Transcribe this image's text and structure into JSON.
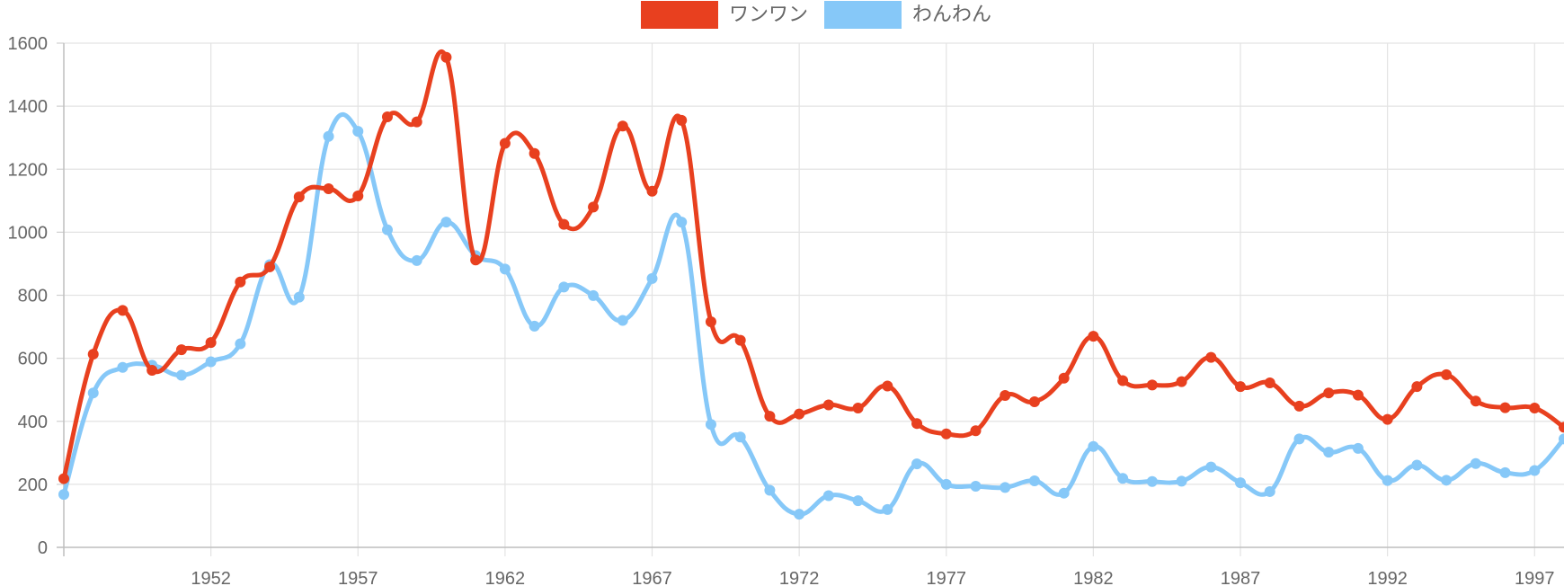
{
  "chart_data": {
    "type": "line",
    "title": "",
    "xlabel": "",
    "ylabel": "",
    "x": [
      1947,
      1948,
      1949,
      1950,
      1951,
      1952,
      1953,
      1954,
      1955,
      1956,
      1957,
      1958,
      1959,
      1960,
      1961,
      1962,
      1963,
      1964,
      1965,
      1966,
      1967,
      1968,
      1969,
      1970,
      1971,
      1972,
      1973,
      1974,
      1975,
      1976,
      1977,
      1978,
      1979,
      1980,
      1981,
      1982,
      1983,
      1984,
      1985,
      1986,
      1987,
      1988,
      1989,
      1990,
      1991,
      1992,
      1993,
      1994,
      1995,
      1996,
      1997,
      1998
    ],
    "xlim": [
      1947,
      1998
    ],
    "xticks": [
      1952,
      1957,
      1962,
      1967,
      1972,
      1977,
      1982,
      1987,
      1992,
      1997
    ],
    "ylim": [
      0,
      1600
    ],
    "yticks": [
      0,
      200,
      400,
      600,
      800,
      1000,
      1200,
      1400,
      1600
    ],
    "grid": true,
    "legend_position": "top-center",
    "series": [
      {
        "name": "ワンワン",
        "color": "#e8401f",
        "values": [
          218,
          613,
          752,
          562,
          627,
          650,
          842,
          890,
          1112,
          1138,
          1115,
          1366,
          1350,
          1555,
          912,
          1282,
          1250,
          1025,
          1080,
          1337,
          1130,
          1355,
          716,
          657,
          416,
          423,
          452,
          442,
          512,
          393,
          360,
          370,
          482,
          462,
          537,
          670,
          529,
          515,
          526,
          603,
          510,
          522,
          448,
          490,
          483,
          406,
          510,
          548,
          464,
          443,
          442,
          381
        ]
      },
      {
        "name": "わんわん",
        "color": "#86c8f8",
        "values": [
          168,
          490,
          571,
          578,
          546,
          589,
          646,
          897,
          794,
          1304,
          1320,
          1008,
          910,
          1032,
          926,
          883,
          702,
          826,
          799,
          720,
          853,
          1032,
          390,
          350,
          181,
          105,
          164,
          148,
          120,
          265,
          200,
          194,
          190,
          211,
          172,
          320,
          219,
          209,
          210,
          255,
          205,
          177,
          344,
          302,
          314,
          212,
          261,
          213,
          266,
          237,
          244,
          344
        ]
      }
    ]
  }
}
